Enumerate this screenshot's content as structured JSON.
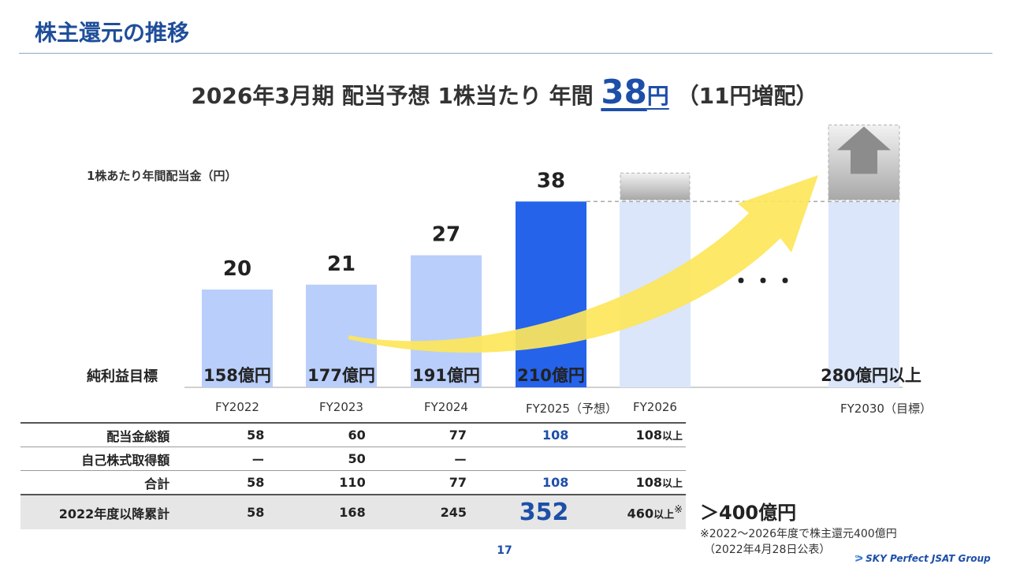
{
  "slide": {
    "title": "株主還元の推移",
    "page_number": "17"
  },
  "headline": {
    "prefix": "2026年3月期 配当予想 1株当たり 年間",
    "amount": "38",
    "unit": "円",
    "suffix": "（11円増配）"
  },
  "colors": {
    "title": "#1f4e9a",
    "accent": "#1d4fa8",
    "bar_actual": "#b9cefa",
    "bar_forecast": "#2563eb",
    "bar_future": "#dbe6fb",
    "arrow": "#fde65a"
  },
  "chart_data": {
    "type": "bar",
    "ylabel": "1株あたり年間配当金（円）",
    "categories": [
      "FY2022",
      "FY2023",
      "FY2024",
      "FY2025（予想）",
      "FY2026",
      "FY2030（目標）"
    ],
    "values": [
      20,
      21,
      27,
      38,
      null,
      null
    ],
    "value_labels": [
      "20",
      "21",
      "27",
      "38",
      "",
      ""
    ],
    "ellipsis": "・・・",
    "net_income_label": "純利益目標",
    "net_income_targets": [
      "158億円",
      "177億円",
      "191億円",
      "210億円",
      "",
      "280億円以上"
    ]
  },
  "table": {
    "rows": [
      {
        "label": "配当金総額",
        "values": [
          "58",
          "60",
          "77",
          "108"
        ],
        "extra": "108",
        "extra_suffix": "以上"
      },
      {
        "label": "自己株式取得額",
        "values": [
          "ー",
          "50",
          "ー",
          ""
        ],
        "extra": "",
        "extra_suffix": ""
      },
      {
        "label": "合計",
        "values": [
          "58",
          "110",
          "77",
          "108"
        ],
        "extra": "108",
        "extra_suffix": "以上"
      },
      {
        "label": "2022年度以降累計",
        "values": [
          "58",
          "168",
          "245",
          "352"
        ],
        "extra": "460",
        "extra_suffix": "以上",
        "extra_mark": "※"
      }
    ]
  },
  "summary": {
    "total": "＞400億円",
    "note_line1": "※2022～2026年度で株主還元400億円",
    "note_line2": "（2022年4月28日公表）"
  },
  "logo": {
    "text": "SKY Perfect JSAT Group"
  }
}
